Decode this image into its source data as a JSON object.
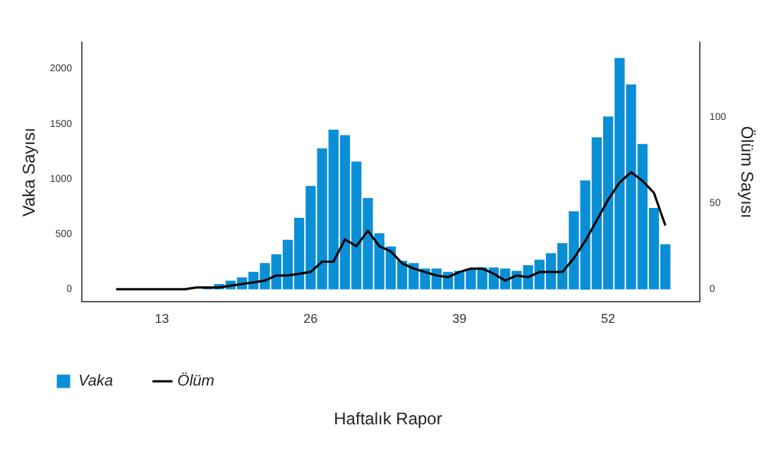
{
  "chart_data": {
    "type": "bar",
    "xlabel": "Haftalık Rapor",
    "ylabel": "Vaka Sayısı",
    "y2label": "Ölüm Sayısı",
    "xlim": [
      6,
      60
    ],
    "xticks": [
      13,
      26,
      39,
      52
    ],
    "ylim": [
      -115,
      2240
    ],
    "yticks": [
      0,
      500,
      1000,
      1500,
      2000
    ],
    "y2lim": [
      -7.4,
      143.5
    ],
    "y2ticks": [
      0,
      50,
      100
    ],
    "grid": false,
    "legend": "bottom left",
    "series": [
      {
        "name": "Vaka",
        "color": "#0a8fd6",
        "x": [
          17,
          18,
          19,
          20,
          21,
          22,
          23,
          24,
          25,
          26,
          27,
          28,
          29,
          30,
          31,
          32,
          33,
          34,
          35,
          36,
          37,
          38,
          39,
          40,
          41,
          42,
          43,
          44,
          45,
          46,
          47,
          48,
          49,
          50,
          51,
          52,
          53,
          54,
          55,
          56,
          57
        ],
        "values": [
          20,
          50,
          80,
          110,
          160,
          240,
          320,
          450,
          650,
          940,
          1280,
          1450,
          1400,
          1160,
          830,
          510,
          390,
          260,
          240,
          190,
          190,
          160,
          170,
          190,
          200,
          200,
          190,
          170,
          220,
          270,
          330,
          420,
          710,
          990,
          1380,
          1570,
          2100,
          1860,
          1320,
          740,
          410
        ]
      },
      {
        "name": "Ölüm",
        "type": "line",
        "axis": "y2",
        "color": "#000000",
        "marker": "none",
        "line_style": "solid",
        "x": [
          9,
          10,
          11,
          12,
          13,
          14,
          15,
          16,
          17,
          18,
          19,
          20,
          21,
          22,
          23,
          24,
          25,
          26,
          27,
          28,
          29,
          30,
          31,
          32,
          33,
          34,
          35,
          36,
          37,
          38,
          39,
          40,
          41,
          42,
          43,
          44,
          45,
          46,
          47,
          48,
          49,
          50,
          51,
          52,
          53,
          54,
          55,
          56,
          57
        ],
        "values": [
          0,
          0,
          0,
          0,
          0,
          0,
          0,
          1,
          1,
          1,
          2,
          3,
          4,
          5,
          8,
          8,
          9,
          10,
          16,
          16,
          29,
          25,
          34,
          25,
          22,
          15,
          12,
          10,
          8,
          7,
          10,
          12,
          12,
          9,
          5,
          8,
          7,
          10,
          10,
          10,
          18,
          28,
          40,
          52,
          62,
          68,
          63,
          56,
          37
        ]
      }
    ]
  }
}
